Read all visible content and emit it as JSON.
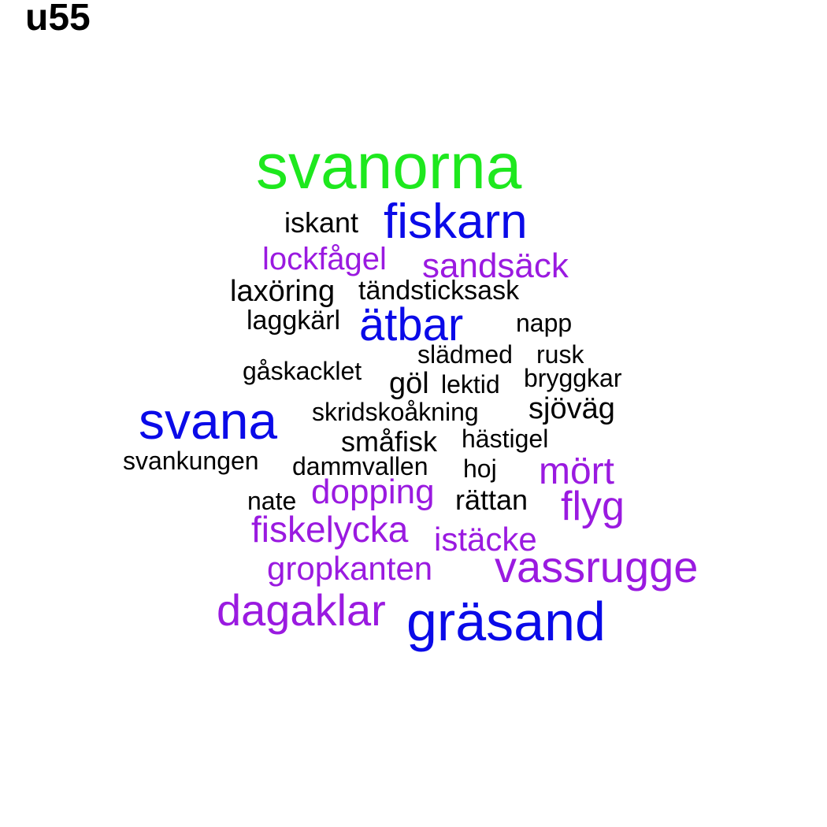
{
  "title": "u55",
  "colors": {
    "green": "#1ee81e",
    "blue": "#0a0ae8",
    "purple": "#9a1ae0",
    "black": "#000000"
  },
  "words": [
    {
      "text": "svanorna",
      "color": "green"
    },
    {
      "text": "fiskarn",
      "color": "blue"
    },
    {
      "text": "iskant",
      "color": "black"
    },
    {
      "text": "lockfågel",
      "color": "purple"
    },
    {
      "text": "sandsäck",
      "color": "purple"
    },
    {
      "text": "laxöring",
      "color": "black"
    },
    {
      "text": "tändsticksask",
      "color": "black"
    },
    {
      "text": "laggkärl",
      "color": "black"
    },
    {
      "text": "ätbar",
      "color": "blue"
    },
    {
      "text": "napp",
      "color": "black"
    },
    {
      "text": "slädmed",
      "color": "black"
    },
    {
      "text": "rusk",
      "color": "black"
    },
    {
      "text": "gåskacklet",
      "color": "black"
    },
    {
      "text": "göl",
      "color": "black"
    },
    {
      "text": "lektid",
      "color": "black"
    },
    {
      "text": "bryggkar",
      "color": "black"
    },
    {
      "text": "svana",
      "color": "blue"
    },
    {
      "text": "skridskoåkning",
      "color": "black"
    },
    {
      "text": "sjöväg",
      "color": "black"
    },
    {
      "text": "småfisk",
      "color": "black"
    },
    {
      "text": "hästigel",
      "color": "black"
    },
    {
      "text": "svankungen",
      "color": "black"
    },
    {
      "text": "dammvallen",
      "color": "black"
    },
    {
      "text": "hoj",
      "color": "black"
    },
    {
      "text": "mört",
      "color": "purple"
    },
    {
      "text": "dopping",
      "color": "purple"
    },
    {
      "text": "nate",
      "color": "black"
    },
    {
      "text": "rättan",
      "color": "black"
    },
    {
      "text": "flyg",
      "color": "purple"
    },
    {
      "text": "fiskelycka",
      "color": "purple"
    },
    {
      "text": "istäcke",
      "color": "purple"
    },
    {
      "text": "gropkanten",
      "color": "purple"
    },
    {
      "text": "vassrugge",
      "color": "purple"
    },
    {
      "text": "dagaklar",
      "color": "purple"
    },
    {
      "text": "gräsand",
      "color": "blue"
    }
  ]
}
